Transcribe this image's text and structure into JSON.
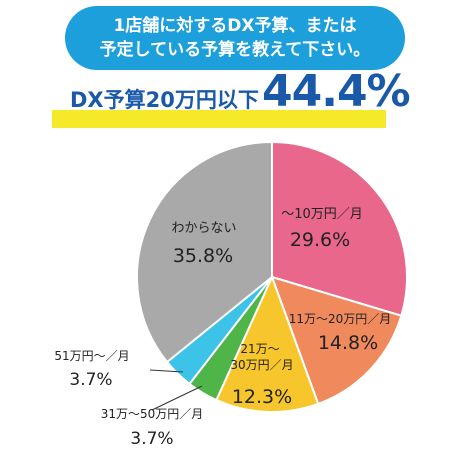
{
  "question": {
    "line1": "1店舗に対するDX予算、または",
    "line2": "予定している予算を教えて下さい。"
  },
  "headline": {
    "label": "DX予算20万円以下",
    "value": "44.4%"
  },
  "chart_data": {
    "type": "pie",
    "title": "",
    "start": "12 o'clock, clockwise",
    "slices": [
      {
        "label": "～10万円／月",
        "value": 29.6,
        "display": "29.6%",
        "color": "#e8678a"
      },
      {
        "label": "11万～20万円／月",
        "value": 14.8,
        "display": "14.8%",
        "color": "#f08a5d"
      },
      {
        "label": "21万～30万円／月",
        "value": 12.3,
        "display": "12.3%",
        "color": "#f7c62c"
      },
      {
        "label": "31万～50万円／月",
        "value": 3.7,
        "display": "3.7%",
        "color": "#4fb548"
      },
      {
        "label": "51万円～／月",
        "value": 3.7,
        "display": "3.7%",
        "color": "#3ec3e8"
      },
      {
        "label": "わからない",
        "value": 35.8,
        "display": "35.8%",
        "color": "#a9a9a9"
      }
    ]
  }
}
